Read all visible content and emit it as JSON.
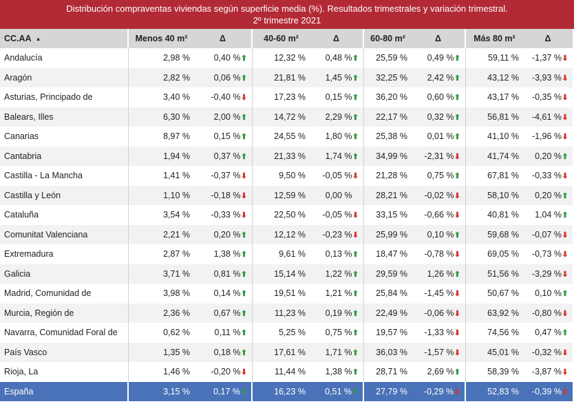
{
  "table": {
    "title": "Distribución compraventas viviendas según superficie media (%). Resultados trimestrales y variación trimestral.",
    "subtitle": "2º trimestre 2021",
    "header": [
      "CC.AA",
      "Menos 40 m²",
      "Δ",
      "40-60 m²",
      "Δ",
      "60-80 m²",
      "Δ",
      "Más 80 m²",
      "Δ"
    ],
    "rows": [
      [
        "Andalucía",
        "2,98 %",
        "0,40 %",
        "12,32 %",
        "0,48 %",
        "25,59 %",
        "0,49 %",
        "59,11 %",
        "-1,37 %"
      ],
      [
        "Aragón",
        "2,82 %",
        "0,06 %",
        "21,81 %",
        "1,45 %",
        "32,25 %",
        "2,42 %",
        "43,12 %",
        "-3,93 %"
      ],
      [
        "Asturias, Principado de",
        "3,40 %",
        "-0,40 %",
        "17,23 %",
        "0,15 %",
        "36,20 %",
        "0,60 %",
        "43,17 %",
        "-0,35 %"
      ],
      [
        "Balears, Illes",
        "6,30 %",
        "2,00 %",
        "14,72 %",
        "2,29 %",
        "22,17 %",
        "0,32 %",
        "56,81 %",
        "-4,61 %"
      ],
      [
        "Canarias",
        "8,97 %",
        "0,15 %",
        "24,55 %",
        "1,80 %",
        "25,38 %",
        "0,01 %",
        "41,10 %",
        "-1,96 %"
      ],
      [
        "Cantabria",
        "1,94 %",
        "0,37 %",
        "21,33 %",
        "1,74 %",
        "34,99 %",
        "-2,31 %",
        "41,74 %",
        "0,20 %"
      ],
      [
        "Castilla - La Mancha",
        "1,41 %",
        "-0,37 %",
        "9,50 %",
        "-0,05 %",
        "21,28 %",
        "0,75 %",
        "67,81 %",
        "-0,33 %"
      ],
      [
        "Castilla y León",
        "1,10 %",
        "-0,18 %",
        "12,59 %",
        "0,00 %",
        "28,21 %",
        "-0,02 %",
        "58,10 %",
        "0,20 %"
      ],
      [
        "Cataluña",
        "3,54 %",
        "-0,33 %",
        "22,50 %",
        "-0,05 %",
        "33,15 %",
        "-0,66 %",
        "40,81 %",
        "1,04 %"
      ],
      [
        "Comunitat Valenciana",
        "2,21 %",
        "0,20 %",
        "12,12 %",
        "-0,23 %",
        "25,99 %",
        "0,10 %",
        "59,68 %",
        "-0,07 %"
      ],
      [
        "Extremadura",
        "2,87 %",
        "1,38 %",
        "9,61 %",
        "0,13 %",
        "18,47 %",
        "-0,78 %",
        "69,05 %",
        "-0,73 %"
      ],
      [
        "Galicia",
        "3,71 %",
        "0,81 %",
        "15,14 %",
        "1,22 %",
        "29,59 %",
        "1,26 %",
        "51,56 %",
        "-3,29 %"
      ],
      [
        "Madrid, Comunidad de",
        "3,98 %",
        "0,14 %",
        "19,51 %",
        "1,21 %",
        "25,84 %",
        "-1,45 %",
        "50,67 %",
        "0,10 %"
      ],
      [
        "Murcia, Región de",
        "2,36 %",
        "0,67 %",
        "11,23 %",
        "0,19 %",
        "22,49 %",
        "-0,06 %",
        "63,92 %",
        "-0,80 %"
      ],
      [
        "Navarra, Comunidad Foral de",
        "0,62 %",
        "0,11 %",
        "5,25 %",
        "0,75 %",
        "19,57 %",
        "-1,33 %",
        "74,56 %",
        "0,47 %"
      ],
      [
        "País Vasco",
        "1,35 %",
        "0,18 %",
        "17,61 %",
        "1,71 %",
        "36,03 %",
        "-1,57 %",
        "45,01 %",
        "-0,32 %"
      ],
      [
        "Rioja, La",
        "1,46 %",
        "-0,20 %",
        "11,44 %",
        "1,38 %",
        "28,71 %",
        "2,69 %",
        "58,39 %",
        "-3,87 %"
      ]
    ],
    "total": [
      "España",
      "3,15 %",
      "0,17 %",
      "16,23 %",
      "0,51 %",
      "27,79 %",
      "-0,29 %",
      "52,83 %",
      "-0,39 %"
    ]
  }
}
